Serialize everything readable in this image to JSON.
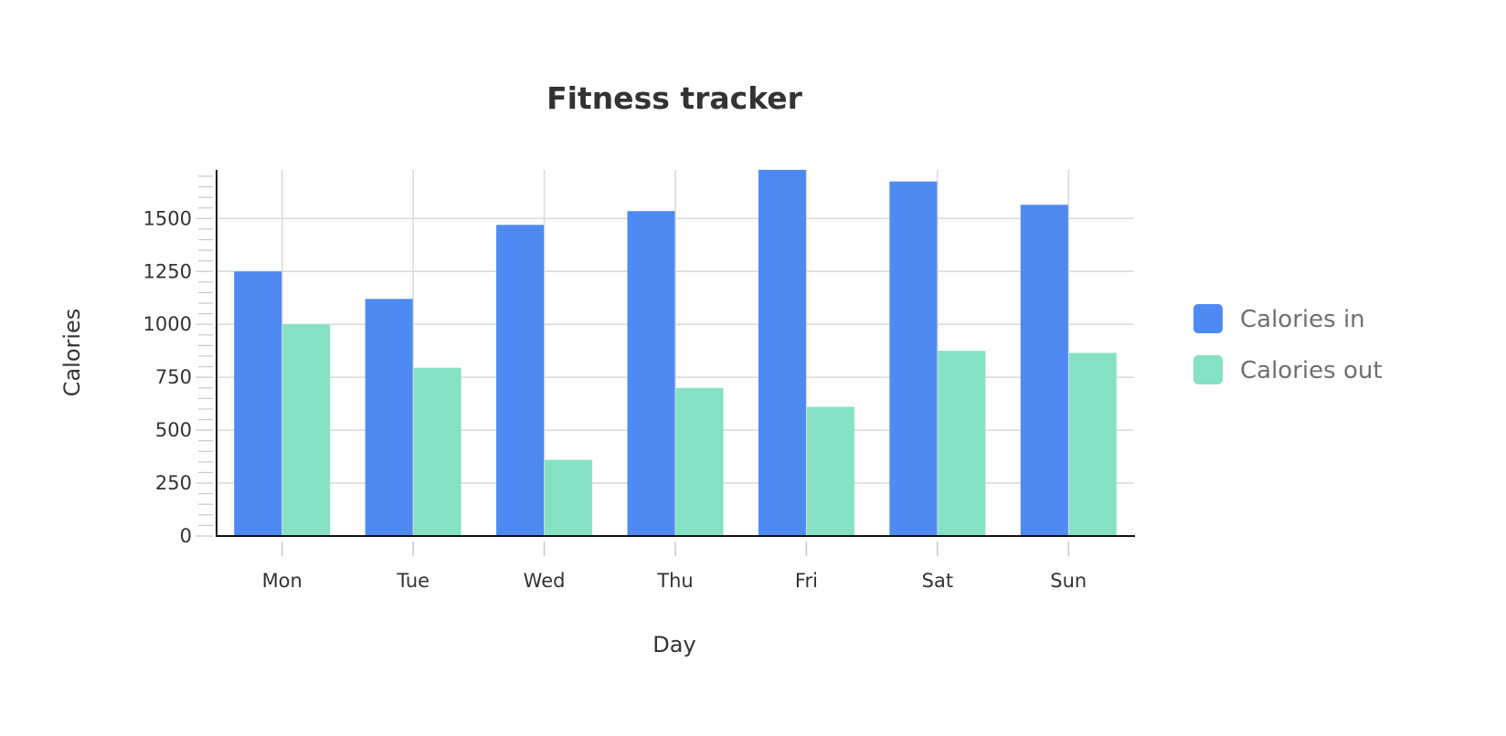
{
  "chart_data": {
    "type": "bar",
    "title": "Fitness tracker",
    "xlabel": "Day",
    "ylabel": "Calories",
    "categories": [
      "Mon",
      "Tue",
      "Wed",
      "Thu",
      "Fri",
      "Sat",
      "Sun"
    ],
    "series": [
      {
        "name": "Calories in",
        "color": "#4f8af3",
        "values": [
          1250,
          1120,
          1470,
          1535,
          1730,
          1675,
          1565
        ]
      },
      {
        "name": "Calories out",
        "color": "#86e1c4",
        "values": [
          1000,
          795,
          360,
          700,
          610,
          875,
          865
        ]
      }
    ],
    "ylim": [
      0,
      1730
    ],
    "yticks": [
      0,
      250,
      500,
      750,
      1000,
      1250,
      1500
    ],
    "grid": true,
    "legend_position": "right"
  }
}
